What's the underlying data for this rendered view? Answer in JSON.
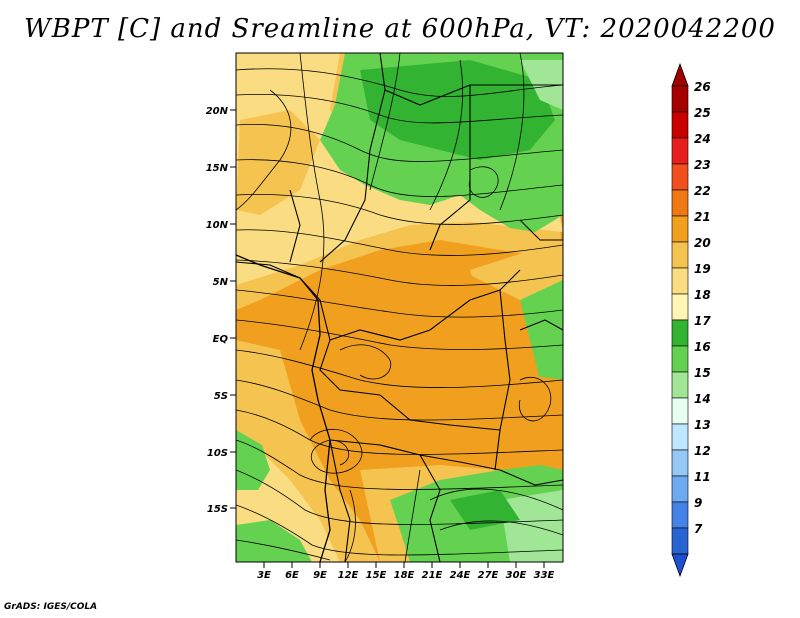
{
  "title": "WBPT [C] and Sreamline at 600hPa, VT: 2020042200",
  "credit": "GrADS: IGES/COLA",
  "lat_ticks": [
    "20N",
    "15N",
    "10N",
    "5N",
    "EQ",
    "5S",
    "10S",
    "15S"
  ],
  "lon_ticks": [
    "3E",
    "6E",
    "9E",
    "12E",
    "15E",
    "18E",
    "21E",
    "24E",
    "27E",
    "30E",
    "33E"
  ],
  "colorbar": {
    "levels": [
      {
        "label": "26",
        "color": "#a50000"
      },
      {
        "label": "25",
        "color": "#c80000"
      },
      {
        "label": "24",
        "color": "#e61e1e"
      },
      {
        "label": "23",
        "color": "#f0501e"
      },
      {
        "label": "22",
        "color": "#f07814"
      },
      {
        "label": "21",
        "color": "#f0a01e"
      },
      {
        "label": "20",
        "color": "#f5c350"
      },
      {
        "label": "19",
        "color": "#fadc82"
      },
      {
        "label": "18",
        "color": "#fff5b4"
      },
      {
        "label": "17",
        "color": "#32b432"
      },
      {
        "label": "16",
        "color": "#64d250"
      },
      {
        "label": "15",
        "color": "#a0e696"
      },
      {
        "label": "14",
        "color": "#e6fff0"
      },
      {
        "label": "13",
        "color": "#bee6ff"
      },
      {
        "label": "12",
        "color": "#96c8f5"
      },
      {
        "label": "11",
        "color": "#6eaaf0"
      },
      {
        "label": "9",
        "color": "#4682e6"
      },
      {
        "label": "7",
        "color": "#2864d2"
      }
    ],
    "top_color": "#a00000",
    "bottom_color": "#1e50d2"
  },
  "field_colors": {
    "green_dark": "#32b432",
    "green": "#64d250",
    "green_light": "#a0e696",
    "yellow": "#fff5b4",
    "yellow_orange": "#fadc82",
    "orange_light": "#f5c350",
    "orange": "#f0a01e"
  }
}
